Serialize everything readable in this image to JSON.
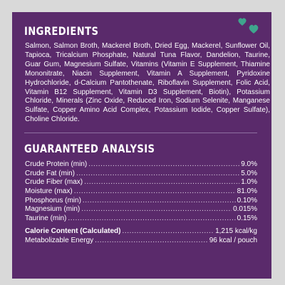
{
  "colors": {
    "page_background": "#d9d9d9",
    "panel_background": "#5a2a6b",
    "text": "#ffffff",
    "divider": "#8e6ea0",
    "decoration_green": "#3fa58d"
  },
  "decoration": {
    "icon": "hearts-icon"
  },
  "ingredients": {
    "heading": "INGREDIENTS",
    "text": "Salmon, Salmon Broth, Mackerel Broth, Dried Egg, Mackerel, Sunflower Oil, Tapioca, Tricalcium Phosphate, Natural Tuna Flavor, Dandelion, Taurine, Guar Gum, Magnesium Sulfate, Vitamins (Vitamin E Supplement, Thiamine Mononitrate, Niacin Supplement, Vitamin A Supplement, Pyridoxine Hydrochloride, d-Calcium Pantothenate, Riboflavin Supplement, Folic Acid, Vitamin B12 Supplement, Vitamin D3 Supplement, Biotin), Potassium Chloride, Minerals (Zinc Oxide, Reduced Iron, Sodium Selenite, Manganese Sulfate, Copper Amino Acid Complex, Potassium Iodide, Copper Sulfate), Choline Chloride."
  },
  "analysis": {
    "heading": "GUARANTEED ANALYSIS",
    "rows": [
      {
        "label": "Crude Protein (min)",
        "value": "9.0%"
      },
      {
        "label": "Crude Fat (min)",
        "value": "5.0%"
      },
      {
        "label": "Crude Fiber (max)",
        "value": "1.0%"
      },
      {
        "label": "Moisture (max)",
        "value": "81.0%"
      },
      {
        "label": "Phosphorus (min)",
        "value": "0.10%"
      },
      {
        "label": "Magnesium (min)",
        "value": "0.015%"
      },
      {
        "label": "Taurine (min)",
        "value": "0.15%"
      }
    ],
    "calorie_rows": [
      {
        "label": "Calorie Content (Calculated)",
        "value": "1,215 kcal/kg"
      },
      {
        "label": "Metabolizable Energy",
        "value": "96 kcal / pouch"
      }
    ]
  }
}
